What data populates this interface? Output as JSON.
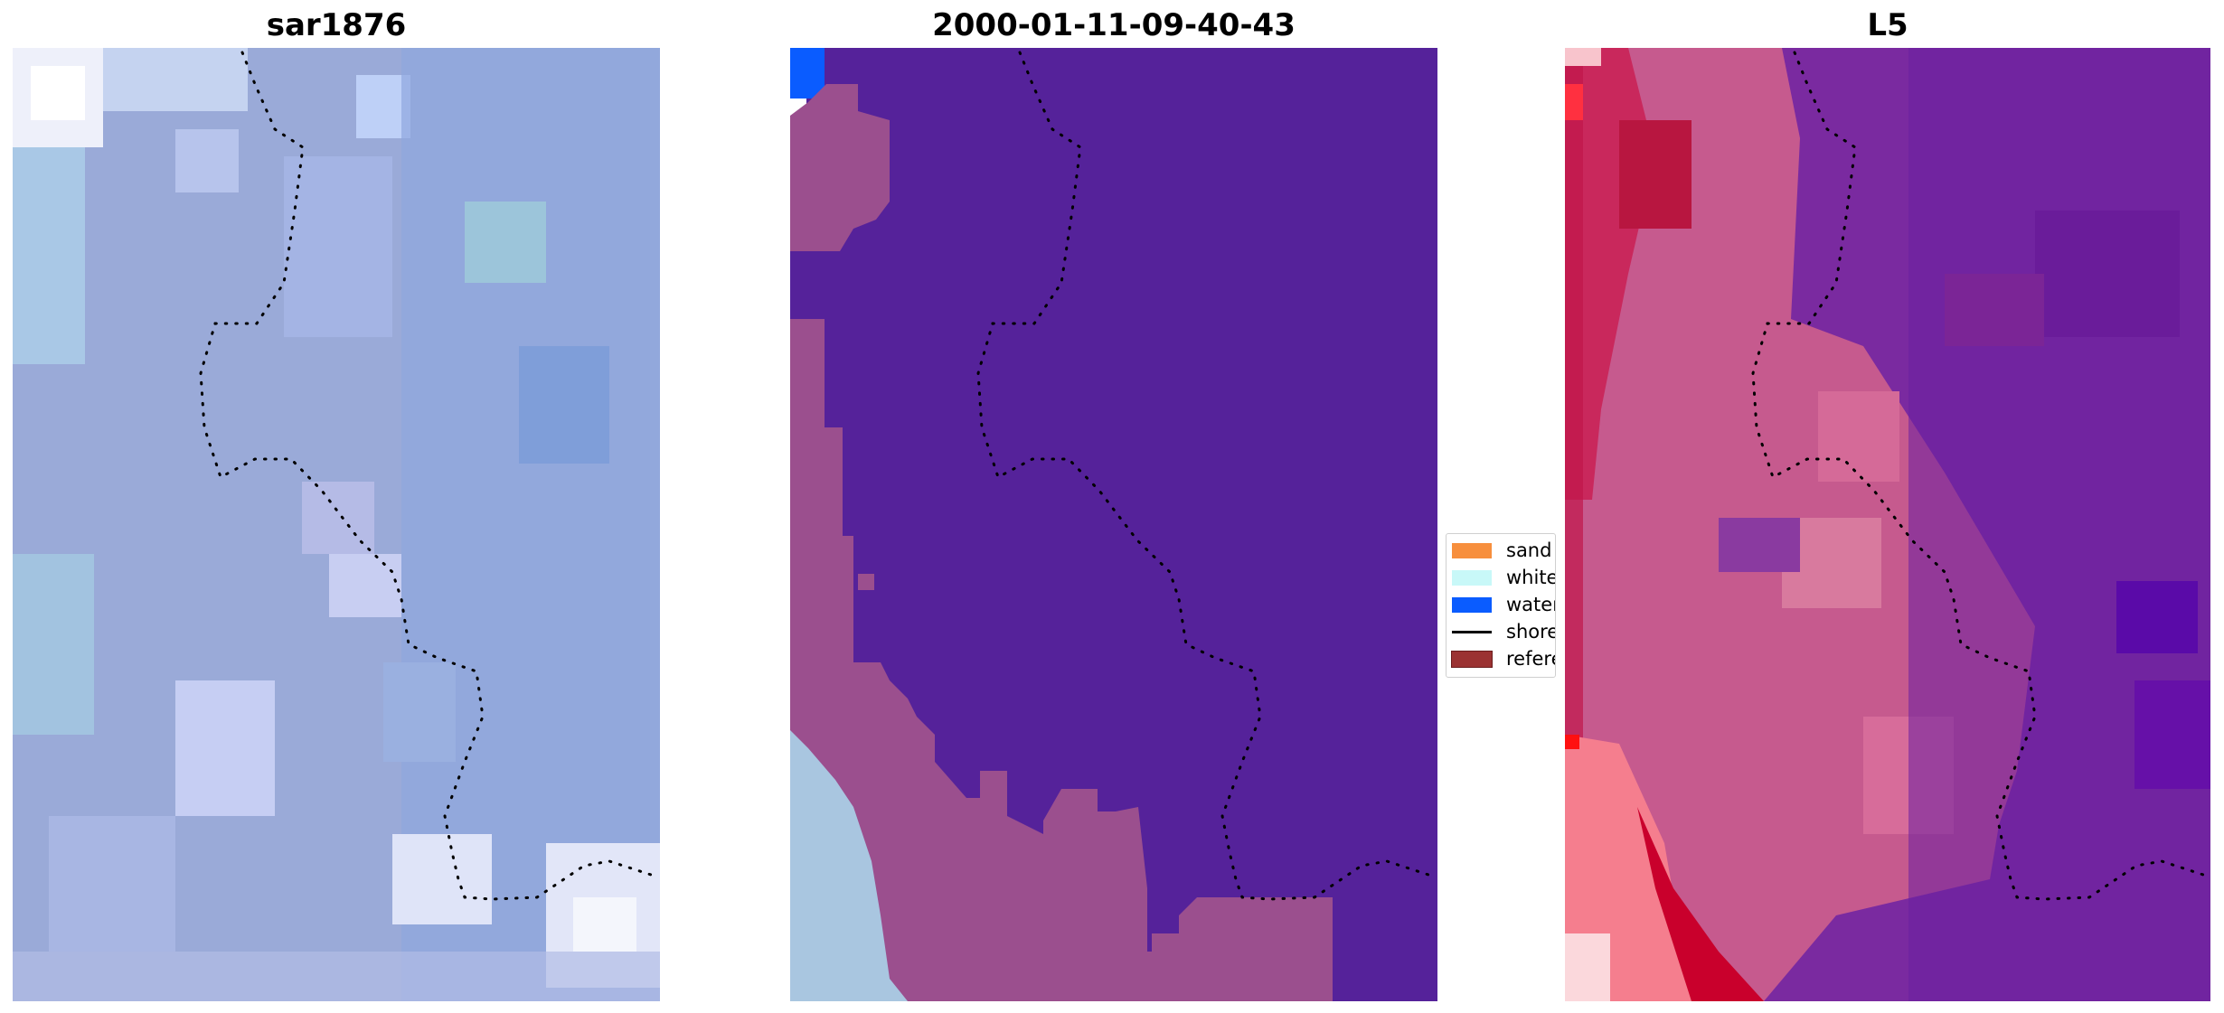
{
  "panels": [
    {
      "title": "sar1876",
      "kind": "rgb-image"
    },
    {
      "title": "2000-01-11-09-40-43",
      "kind": "classification-overlay"
    },
    {
      "title": "L5",
      "kind": "index-heatmap"
    }
  ],
  "legend": {
    "items": [
      {
        "label": "sand",
        "type": "patch",
        "color": "#f78f3d"
      },
      {
        "label": "whitewater",
        "type": "patch",
        "color": "#c8f8f8"
      },
      {
        "label": "water",
        "type": "patch",
        "color": "#0a5cff"
      },
      {
        "label": "shoreline",
        "type": "line",
        "color": "#000000"
      },
      {
        "label": "reference region",
        "type": "patch",
        "color": "#9b3232"
      }
    ]
  },
  "colors": {
    "rgb_base": "#9aaad8",
    "class_land": "#55229a",
    "class_reference": "#9b4f8e",
    "class_whitewater": "#a9c6e0",
    "class_water": "#0a5cff",
    "heat_low": "#6a1fa0",
    "heat_mid": "#c65a8e",
    "heat_high": "#c4002a",
    "shoreline": "#000000"
  }
}
